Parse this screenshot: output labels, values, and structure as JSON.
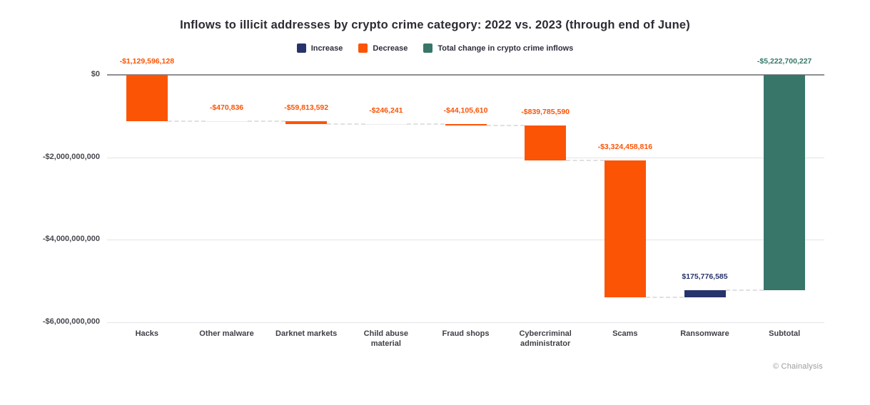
{
  "chart_data": {
    "type": "waterfall",
    "title": "Inflows to illicit addresses by crypto crime category: 2022 vs. 2023 (through end of June)",
    "legend": [
      {
        "label": "Increase",
        "kind": "increase"
      },
      {
        "label": "Decrease",
        "kind": "decrease"
      },
      {
        "label": "Total change in crypto crime inflows",
        "kind": "total"
      }
    ],
    "colors": {
      "increase": "#27336b",
      "decrease": "#fc5405",
      "total": "#377668",
      "grid": "#e4e4e7",
      "zero_line": "#8f8f94",
      "connector": "#e0e0e3",
      "tiny_bar": "#ececef"
    },
    "y_axis": {
      "max": 0,
      "min": -6000000000,
      "ticks": [
        {
          "label": "$0",
          "value": 0
        },
        {
          "label": "-$2,000,000,000",
          "value": -2000000000
        },
        {
          "label": "-$4,000,000,000",
          "value": -4000000000
        },
        {
          "label": "-$6,000,000,000",
          "value": -6000000000
        }
      ]
    },
    "bars": [
      {
        "category": "Hacks",
        "label": "-$1,129,596,128",
        "value": -1129596128,
        "kind": "decrease"
      },
      {
        "category": "Other malware",
        "label": "-$470,836",
        "value": -470836,
        "kind": "decrease"
      },
      {
        "category": "Darknet markets",
        "label": "-$59,813,592",
        "value": -59813592,
        "kind": "decrease"
      },
      {
        "category": "Child abuse material",
        "label": "-$246,241",
        "value": -246241,
        "kind": "decrease"
      },
      {
        "category": "Fraud shops",
        "label": "-$44,105,610",
        "value": -44105610,
        "kind": "decrease"
      },
      {
        "category": "Cybercriminal administrator",
        "label": "-$839,785,590",
        "value": -839785590,
        "kind": "decrease"
      },
      {
        "category": "Scams",
        "label": "-$3,324,458,816",
        "value": -3324458816,
        "kind": "decrease"
      },
      {
        "category": "Ransomware",
        "label": "$175,776,585",
        "value": 175776585,
        "kind": "increase"
      },
      {
        "category": "Subtotal",
        "label": "-$5,222,700,227",
        "value": -5222700227,
        "kind": "total"
      }
    ],
    "attribution": "© Chainalysis"
  }
}
